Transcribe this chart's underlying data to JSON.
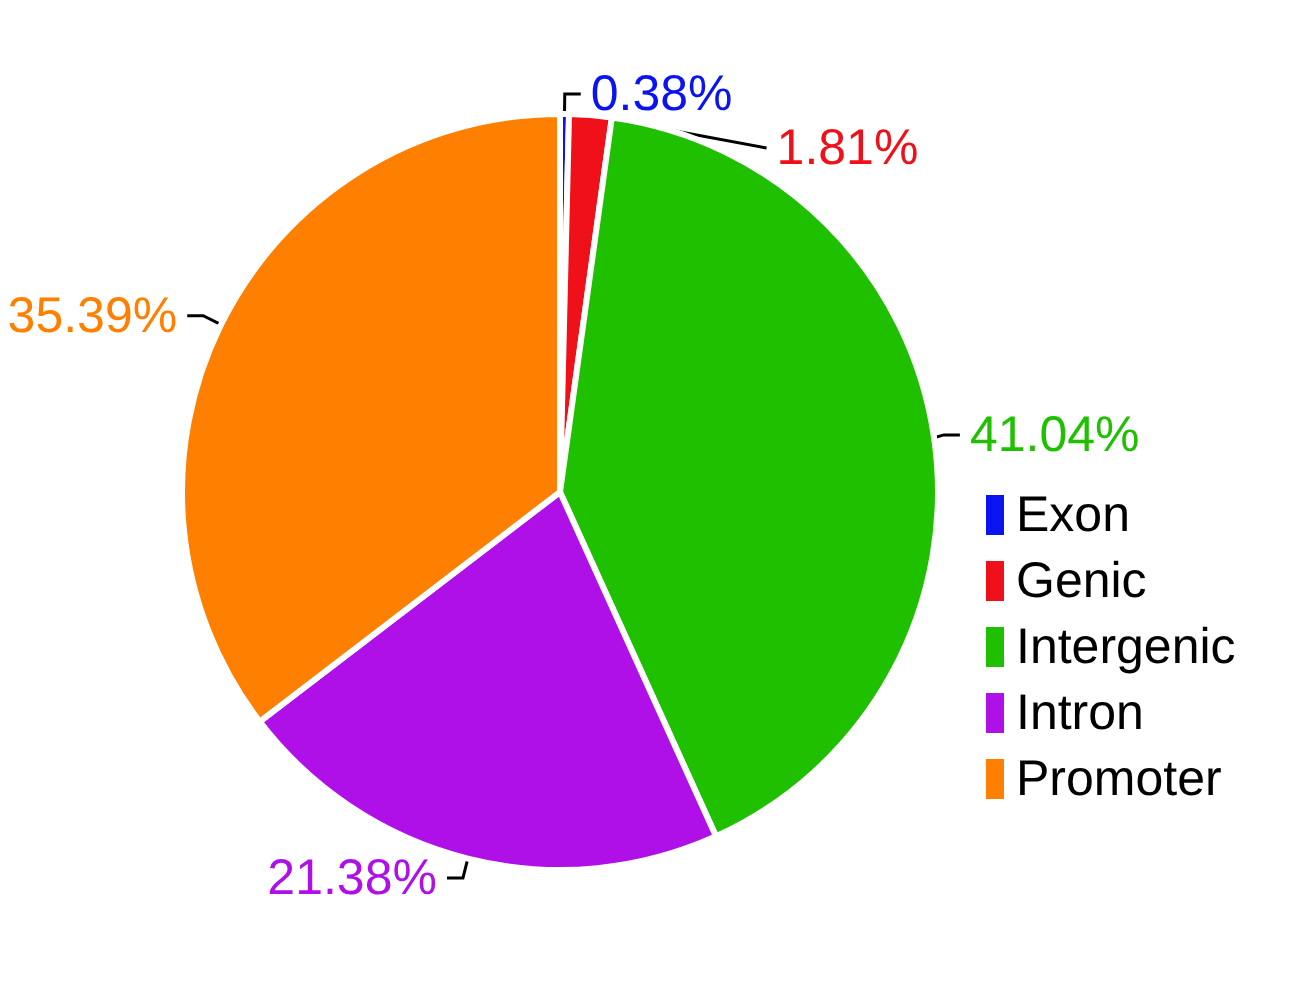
{
  "chart_data": {
    "type": "pie",
    "categories": [
      "Exon",
      "Genic",
      "Intergenic",
      "Intron",
      "Promoter"
    ],
    "values": [
      0.38,
      1.81,
      41.04,
      21.38,
      35.39
    ],
    "colors": [
      "#0a14f0",
      "#f0101a",
      "#1ec000",
      "#b010e8",
      "#ff8000"
    ],
    "value_labels": [
      "0.38%",
      "1.81%",
      "41.04%",
      "21.38%",
      "35.39%"
    ],
    "legend": "right"
  }
}
